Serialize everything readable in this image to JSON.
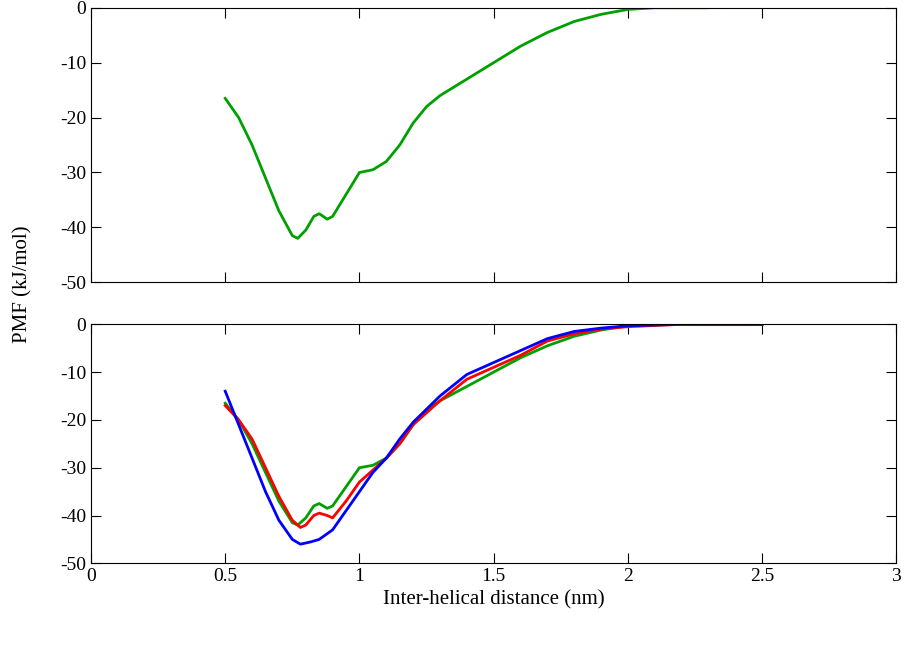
{
  "chart_data": [
    {
      "type": "line",
      "tick_labels": "y",
      "xlim": [
        0,
        3
      ],
      "xticks": [
        0,
        0.5,
        1,
        1.5,
        2,
        2.5,
        3
      ],
      "ylim": [
        -50,
        0
      ],
      "yticks": [
        -50,
        -40,
        -30,
        -20,
        -10,
        0
      ],
      "series": [
        {
          "color": "#00a000",
          "x": [
            0.5,
            0.55,
            0.6,
            0.65,
            0.7,
            0.75,
            0.77,
            0.8,
            0.83,
            0.85,
            0.88,
            0.9,
            0.95,
            1.0,
            1.05,
            1.1,
            1.15,
            1.2,
            1.25,
            1.3,
            1.4,
            1.5,
            1.6,
            1.7,
            1.8,
            1.9,
            2.0,
            2.1,
            2.2,
            2.3
          ],
          "values": [
            -16.5,
            -20,
            -25,
            -31,
            -37,
            -41.5,
            -42,
            -40.5,
            -38,
            -37.5,
            -38.5,
            -38,
            -34,
            -30,
            -29.5,
            -28,
            -25,
            -21,
            -18,
            -16,
            -13,
            -10,
            -7,
            -4.5,
            -2.5,
            -1.2,
            -0.3,
            0,
            0,
            0
          ]
        }
      ]
    },
    {
      "type": "line",
      "x_label": "Inter-helical distance (nm)",
      "y_label": "PMF (kJ/mol)",
      "xlim": [
        0,
        3
      ],
      "xticks": [
        0,
        0.5,
        1,
        1.5,
        2,
        2.5,
        3
      ],
      "ylim": [
        -50,
        0
      ],
      "yticks": [
        -50,
        -40,
        -30,
        -20,
        -10,
        0
      ],
      "series": [
        {
          "color": "#00a000",
          "x": [
            0.5,
            0.55,
            0.6,
            0.65,
            0.7,
            0.75,
            0.77,
            0.8,
            0.83,
            0.85,
            0.88,
            0.9,
            0.95,
            1.0,
            1.05,
            1.1,
            1.15,
            1.2,
            1.25,
            1.3,
            1.4,
            1.5,
            1.6,
            1.7,
            1.8,
            1.9,
            2.0,
            2.1,
            2.2,
            2.3,
            2.4,
            2.5
          ],
          "values": [
            -16.5,
            -20,
            -25,
            -31,
            -37,
            -41.5,
            -42,
            -40.5,
            -38,
            -37.5,
            -38.5,
            -38,
            -34,
            -30,
            -29.5,
            -28,
            -25,
            -21,
            -18,
            -16,
            -13,
            -10,
            -7,
            -4.5,
            -2.5,
            -1.2,
            -0.3,
            0,
            0,
            0,
            0,
            0
          ]
        },
        {
          "color": "#ff0000",
          "x": [
            0.5,
            0.55,
            0.6,
            0.65,
            0.7,
            0.75,
            0.78,
            0.8,
            0.83,
            0.85,
            0.88,
            0.9,
            0.95,
            1.0,
            1.05,
            1.1,
            1.15,
            1.2,
            1.3,
            1.4,
            1.5,
            1.6,
            1.7,
            1.8,
            1.9,
            2.0,
            2.2,
            2.5
          ],
          "values": [
            -17,
            -20,
            -24,
            -30,
            -36,
            -41,
            -42.5,
            -42,
            -40,
            -39.5,
            -40,
            -40.5,
            -37,
            -33,
            -30.5,
            -28,
            -25,
            -21,
            -16,
            -11.5,
            -9,
            -6.5,
            -3.5,
            -2,
            -1,
            -0.5,
            0,
            0
          ]
        },
        {
          "color": "#0000ff",
          "x": [
            0.5,
            0.55,
            0.6,
            0.65,
            0.7,
            0.75,
            0.78,
            0.82,
            0.85,
            0.9,
            0.95,
            1.0,
            1.05,
            1.1,
            1.15,
            1.2,
            1.3,
            1.4,
            1.5,
            1.6,
            1.7,
            1.8,
            1.9,
            2.0,
            2.2,
            2.5
          ],
          "values": [
            -14,
            -21,
            -28,
            -35,
            -41,
            -45,
            -46,
            -45.5,
            -45,
            -43,
            -39,
            -35,
            -31,
            -28,
            -24,
            -20.5,
            -15,
            -10.5,
            -8,
            -5.5,
            -3,
            -1.5,
            -0.8,
            -0.3,
            0,
            0
          ]
        }
      ]
    }
  ]
}
